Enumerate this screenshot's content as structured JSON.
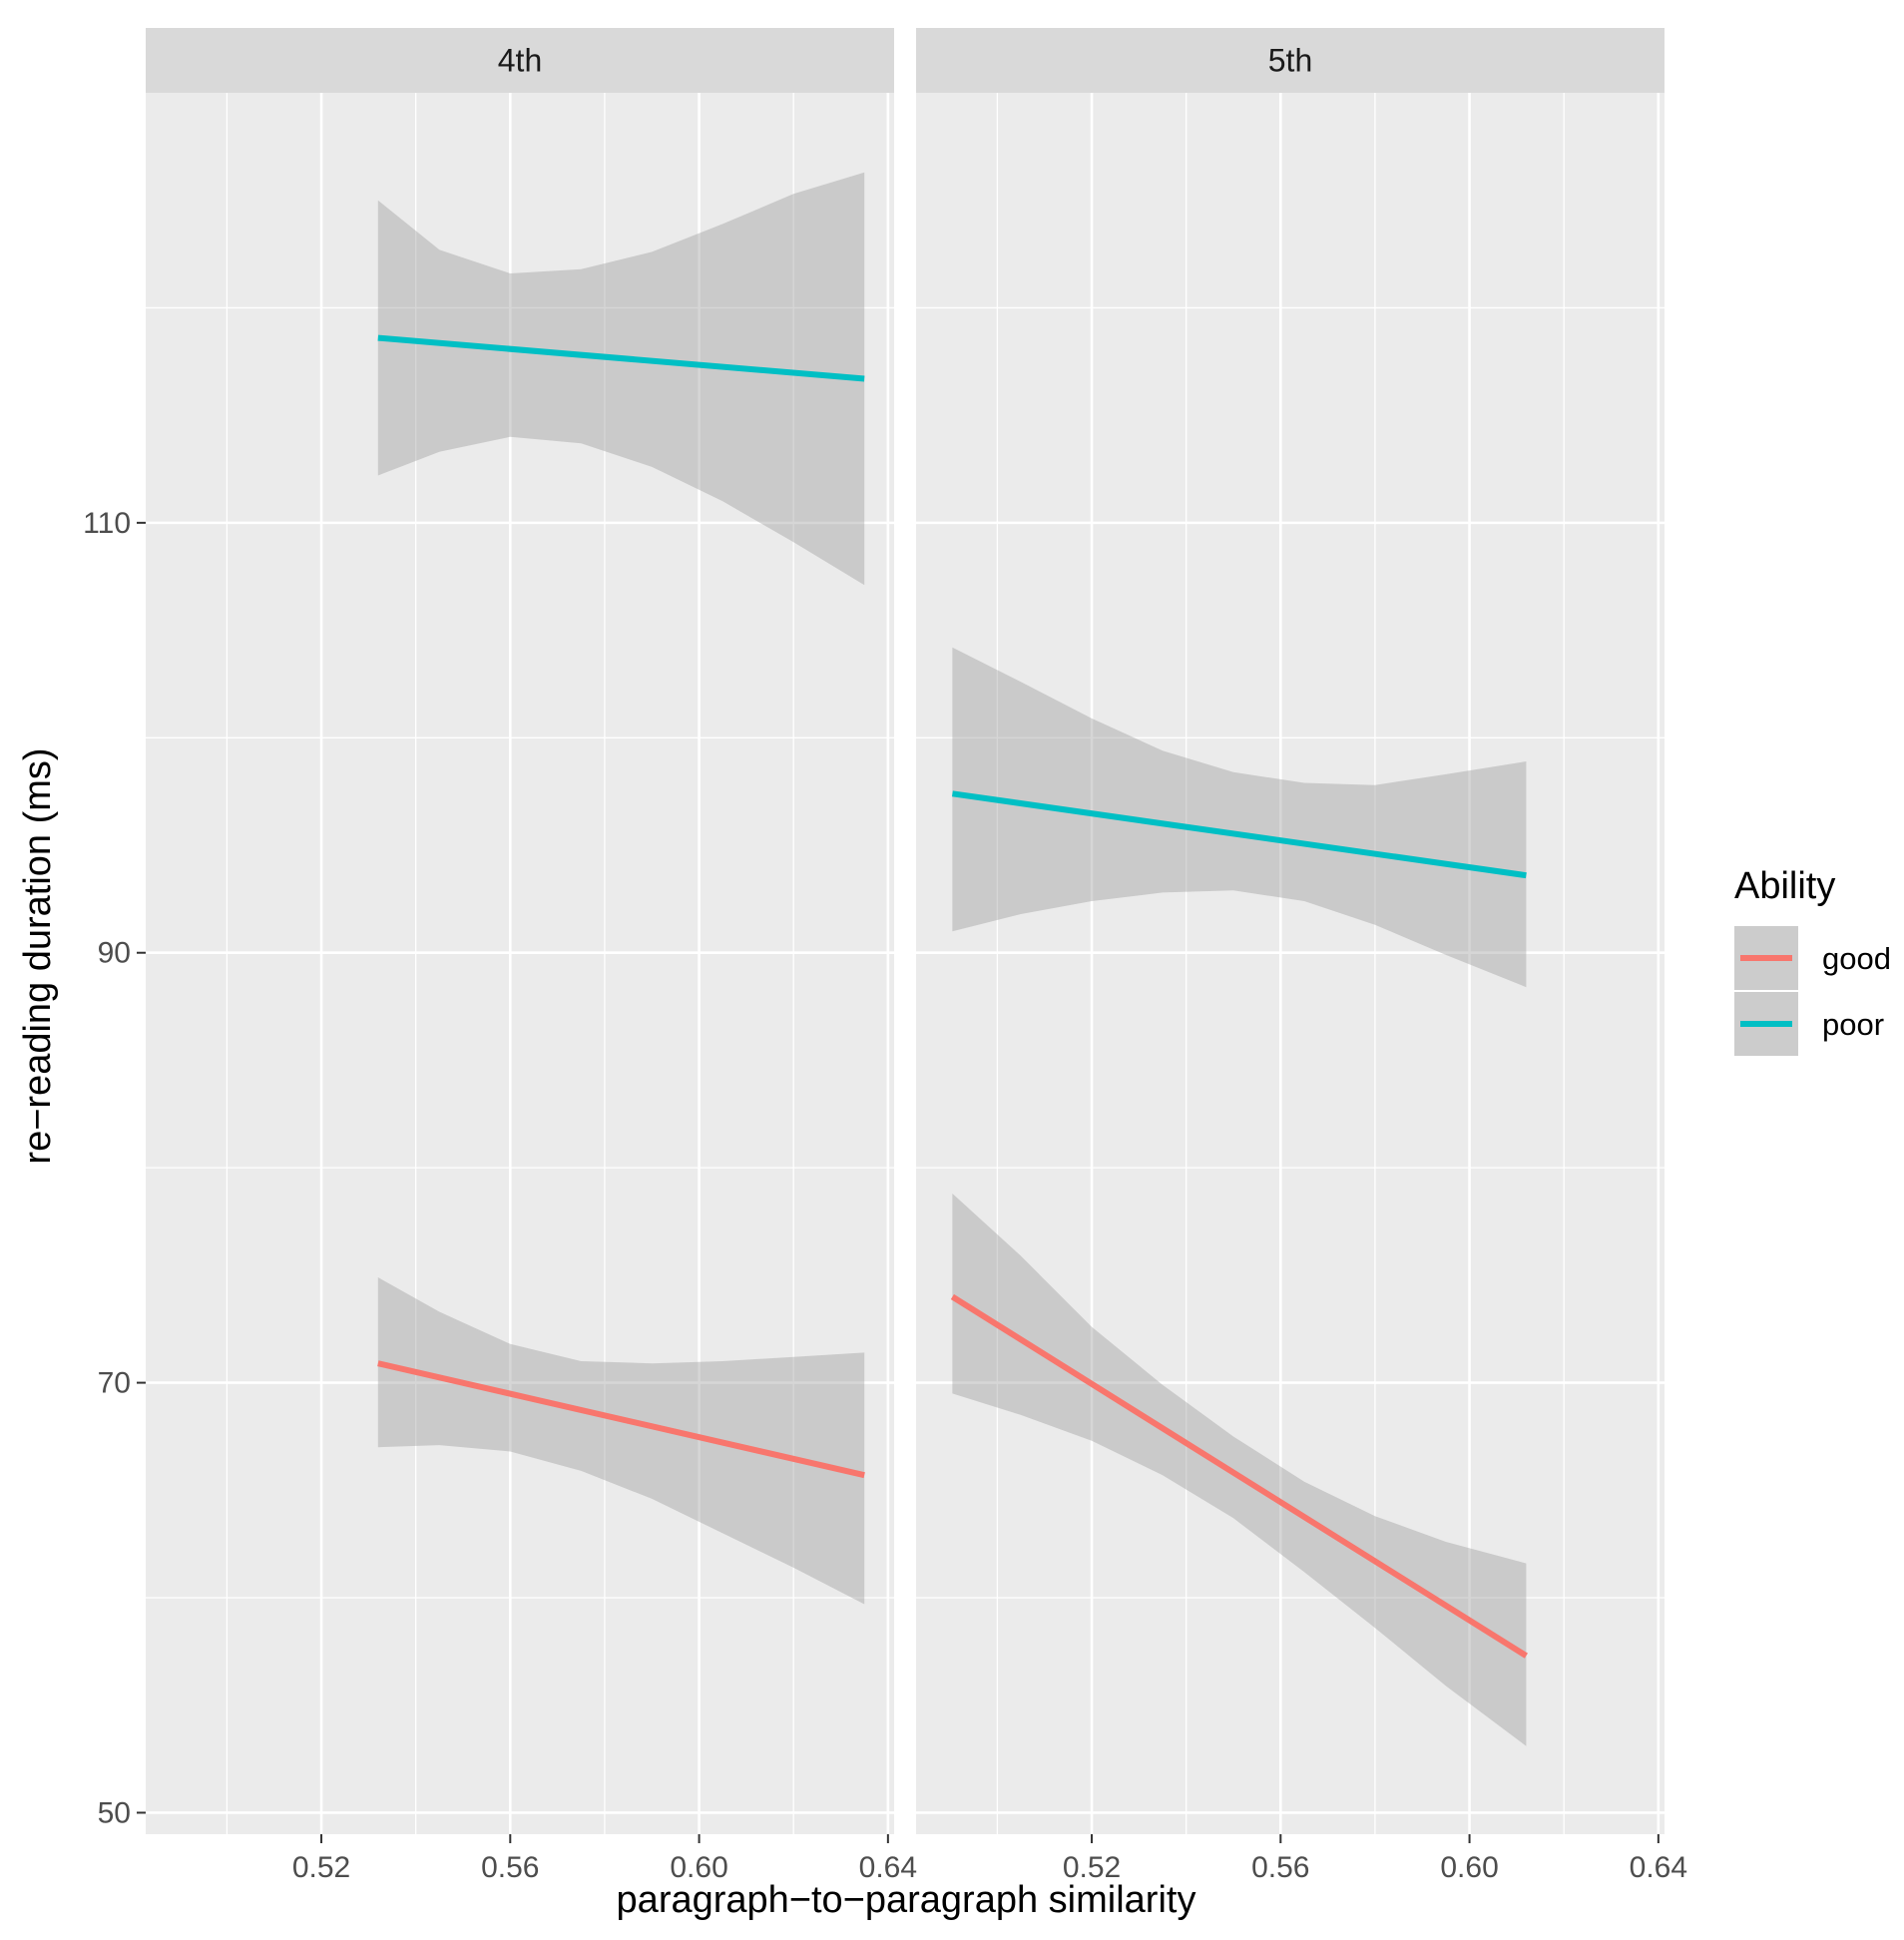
{
  "chart_data": {
    "type": "line",
    "xlabel": "paragraph−to−paragraph similarity",
    "ylabel": "re−reading duration (ms)",
    "xlim": [
      0.4828,
      0.6413
    ],
    "ylim": [
      49,
      130
    ],
    "x_ticks": [
      0.52,
      0.56,
      0.6,
      0.64
    ],
    "x_tick_labels": [
      "0.52",
      "0.56",
      "0.60",
      "0.64"
    ],
    "y_ticks": [
      50,
      70,
      90,
      110
    ],
    "y_tick_labels": [
      "50",
      "70",
      "90",
      "110"
    ],
    "legend": {
      "title": "Ability",
      "position": "right",
      "entries": [
        {
          "name": "good",
          "color": "#F8766D"
        },
        {
          "name": "poor",
          "color": "#00BFC4"
        }
      ]
    },
    "colors": {
      "panel_bg": "#EBEBEB",
      "strip_bg": "#D9D9D9",
      "ribbon": "#999999",
      "grid": "#FFFFFF"
    },
    "panels": [
      {
        "label": "4th",
        "series": [
          {
            "name": "poor",
            "x": [
              0.532,
              0.635
            ],
            "y": [
              118.6,
              116.7
            ],
            "ci_x": [
              0.532,
              0.545,
              0.56,
              0.575,
              0.59,
              0.605,
              0.62,
              0.635
            ],
            "ci_lower": [
              112.2,
              113.3,
              114.0,
              113.7,
              112.6,
              111.0,
              109.1,
              107.1
            ],
            "ci_upper": [
              125.0,
              122.7,
              121.6,
              121.8,
              122.6,
              123.9,
              125.3,
              126.3
            ]
          },
          {
            "name": "good",
            "x": [
              0.532,
              0.635
            ],
            "y": [
              70.9,
              65.7
            ],
            "ci_x": [
              0.532,
              0.545,
              0.56,
              0.575,
              0.59,
              0.605,
              0.62,
              0.635
            ],
            "ci_lower": [
              67.0,
              67.1,
              66.8,
              65.9,
              64.6,
              63.0,
              61.4,
              59.7
            ],
            "ci_upper": [
              74.9,
              73.3,
              71.8,
              71.0,
              70.9,
              71.0,
              71.2,
              71.4
            ]
          }
        ]
      },
      {
        "label": "5th",
        "series": [
          {
            "name": "poor",
            "x": [
              0.4905,
              0.612
            ],
            "y": [
              97.4,
              93.6
            ],
            "ci_x": [
              0.4905,
              0.505,
              0.52,
              0.535,
              0.55,
              0.565,
              0.58,
              0.595,
              0.612
            ],
            "ci_lower": [
              91.0,
              91.8,
              92.4,
              92.8,
              92.9,
              92.4,
              91.3,
              89.9,
              88.4
            ],
            "ci_upper": [
              104.2,
              102.6,
              100.9,
              99.4,
              98.4,
              97.9,
              97.8,
              98.3,
              98.9
            ]
          },
          {
            "name": "good",
            "x": [
              0.4905,
              0.612
            ],
            "y": [
              74.0,
              57.3
            ],
            "ci_x": [
              0.4905,
              0.505,
              0.52,
              0.535,
              0.55,
              0.565,
              0.58,
              0.595,
              0.612
            ],
            "ci_lower": [
              69.5,
              68.5,
              67.3,
              65.7,
              63.7,
              61.2,
              58.6,
              55.9,
              53.1
            ],
            "ci_upper": [
              78.8,
              75.9,
              72.6,
              69.9,
              67.5,
              65.4,
              63.8,
              62.6,
              61.6
            ]
          }
        ]
      }
    ]
  }
}
